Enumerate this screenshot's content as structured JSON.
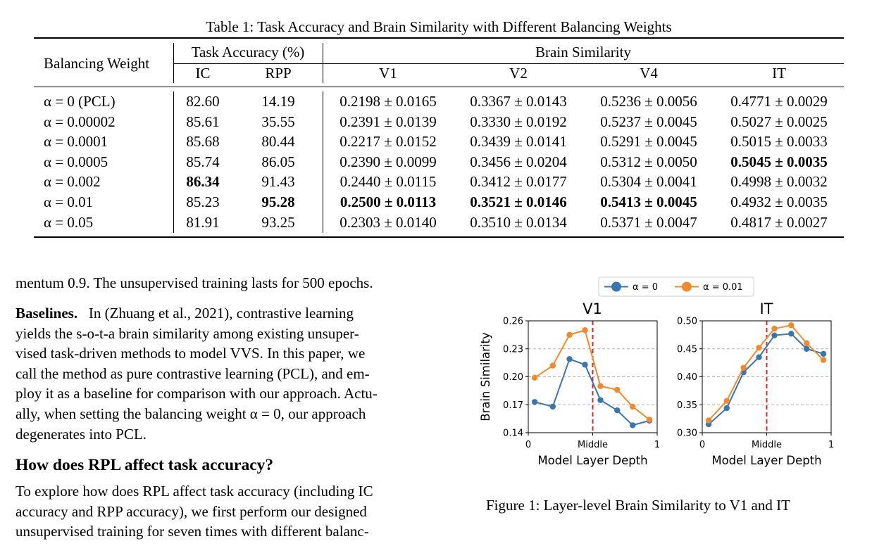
{
  "table": {
    "caption": "Table 1: Task Accuracy and Brain Similarity with Different Balancing Weights",
    "headers": {
      "balancing_weight": "Balancing Weight",
      "task_accuracy": "Task Accuracy (%)",
      "brain_similarity": "Brain Similarity",
      "ic": "IC",
      "rpp": "RPP",
      "v1": "V1",
      "v2": "V2",
      "v4": "V4",
      "it": "IT"
    },
    "rows": [
      {
        "weight": "α = 0 (PCL)",
        "ic": "82.60",
        "rpp": "14.19",
        "v1": "0.2198 ± 0.0165",
        "v2": "0.3367 ± 0.0143",
        "v4": "0.5236 ± 0.0056",
        "it": "0.4771 ± 0.0029"
      },
      {
        "weight": "α = 0.00002",
        "ic": "85.61",
        "rpp": "35.55",
        "v1": "0.2391 ± 0.0139",
        "v2": "0.3330 ± 0.0192",
        "v4": "0.5237 ± 0.0045",
        "it": "0.5027 ± 0.0025"
      },
      {
        "weight": "α = 0.0001",
        "ic": "85.68",
        "rpp": "80.44",
        "v1": "0.2217 ± 0.0152",
        "v2": "0.3439 ± 0.0141",
        "v4": "0.5291 ± 0.0045",
        "it": "0.5015 ± 0.0033"
      },
      {
        "weight": "α = 0.0005",
        "ic": "85.74",
        "rpp": "86.05",
        "v1": "0.2390 ± 0.0099",
        "v2": "0.3456 ± 0.0204",
        "v4": "0.5312 ± 0.0050",
        "it": "0.5045 ± 0.0035"
      },
      {
        "weight": "α = 0.002",
        "ic": "86.34",
        "rpp": "91.43",
        "v1": "0.2440 ± 0.0115",
        "v2": "0.3412 ± 0.0177",
        "v4": "0.5304 ± 0.0041",
        "it": "0.4998 ± 0.0032"
      },
      {
        "weight": "α = 0.01",
        "ic": "85.23",
        "rpp": "95.28",
        "v1": "0.2500 ± 0.0113",
        "v2": "0.3521 ± 0.0146",
        "v4": "0.5413 ± 0.0045",
        "it": "0.4932 ± 0.0035"
      },
      {
        "weight": "α = 0.05",
        "ic": "81.91",
        "rpp": "93.25",
        "v1": "0.2303 ± 0.0140",
        "v2": "0.3510 ± 0.0134",
        "v4": "0.5371 ± 0.0047",
        "it": "0.4817 ± 0.0027"
      }
    ],
    "bold_cells": [
      "3.it",
      "4.ic",
      "5.rpp",
      "5.v1",
      "5.v2",
      "5.v4"
    ]
  },
  "text": {
    "intro_line": "mentum 0.9. The unsupervised training lasts for 500 epochs.",
    "baselines_label": "Baselines.",
    "baselines_lines": [
      "In (Zhuang et al., 2021), contrastive learning",
      "yields the s-o-t-a brain similarity among existing unsuper-",
      "vised task-driven methods to model VVS. In this paper, we",
      "call the method as pure contrastive learning (PCL), and em-",
      "ploy it as a baseline for comparison with our approach. Actu-",
      "ally, when setting the balancing weight α = 0, our approach",
      "degenerates into PCL."
    ],
    "section_heading": "How does RPL affect task accuracy?",
    "section_lines": [
      "To explore how does RPL affect task accuracy (including IC",
      "accuracy and RPP accuracy), we first perform our designed",
      "unsupervised training for seven times with different balanc-"
    ]
  },
  "figure": {
    "caption": "Figure 1: Layer-level Brain Similarity to V1 and IT",
    "colors": {
      "alpha0": "#3a75b0",
      "alpha001": "#f08a2c",
      "middle_line": "#d62728",
      "grid": "#b0b0b0"
    }
  },
  "chart_data": [
    {
      "type": "line",
      "title": "V1",
      "xlabel": "Model Layer Depth",
      "ylabel": "Brain Similarity",
      "xlim": [
        0,
        1
      ],
      "ylim": [
        0.14,
        0.26
      ],
      "xticks": [
        "0",
        "Middle",
        "1"
      ],
      "yticks": [
        "0.14",
        "0.17",
        "0.20",
        "0.23",
        "0.26"
      ],
      "middle_marker": 0.5,
      "grid": "horizontal dashed",
      "legend": "top-center",
      "series": [
        {
          "name": "α = 0",
          "color": "#3a75b0",
          "x": [
            0.05,
            0.19,
            0.32,
            0.44,
            0.56,
            0.69,
            0.81,
            0.94
          ],
          "y": [
            0.173,
            0.168,
            0.219,
            0.213,
            0.175,
            0.164,
            0.148,
            0.153
          ]
        },
        {
          "name": "α = 0.01",
          "color": "#f08a2c",
          "x": [
            0.05,
            0.19,
            0.32,
            0.44,
            0.56,
            0.69,
            0.81,
            0.94
          ],
          "y": [
            0.199,
            0.212,
            0.245,
            0.25,
            0.19,
            0.186,
            0.168,
            0.154
          ]
        }
      ]
    },
    {
      "type": "line",
      "title": "IT",
      "xlabel": "Model Layer Depth",
      "ylabel": "",
      "xlim": [
        0,
        1
      ],
      "ylim": [
        0.3,
        0.5
      ],
      "xticks": [
        "0",
        "Middle",
        "1"
      ],
      "yticks": [
        "0.30",
        "0.35",
        "0.40",
        "0.45",
        "0.50"
      ],
      "middle_marker": 0.5,
      "grid": "horizontal dashed",
      "series": [
        {
          "name": "α = 0",
          "color": "#3a75b0",
          "x": [
            0.05,
            0.19,
            0.32,
            0.44,
            0.56,
            0.69,
            0.81,
            0.94
          ],
          "y": [
            0.315,
            0.344,
            0.408,
            0.435,
            0.474,
            0.477,
            0.45,
            0.441
          ]
        },
        {
          "name": "α = 0.01",
          "color": "#f08a2c",
          "x": [
            0.05,
            0.19,
            0.32,
            0.44,
            0.56,
            0.69,
            0.81,
            0.94
          ],
          "y": [
            0.322,
            0.357,
            0.416,
            0.452,
            0.486,
            0.492,
            0.46,
            0.43
          ]
        }
      ]
    }
  ]
}
